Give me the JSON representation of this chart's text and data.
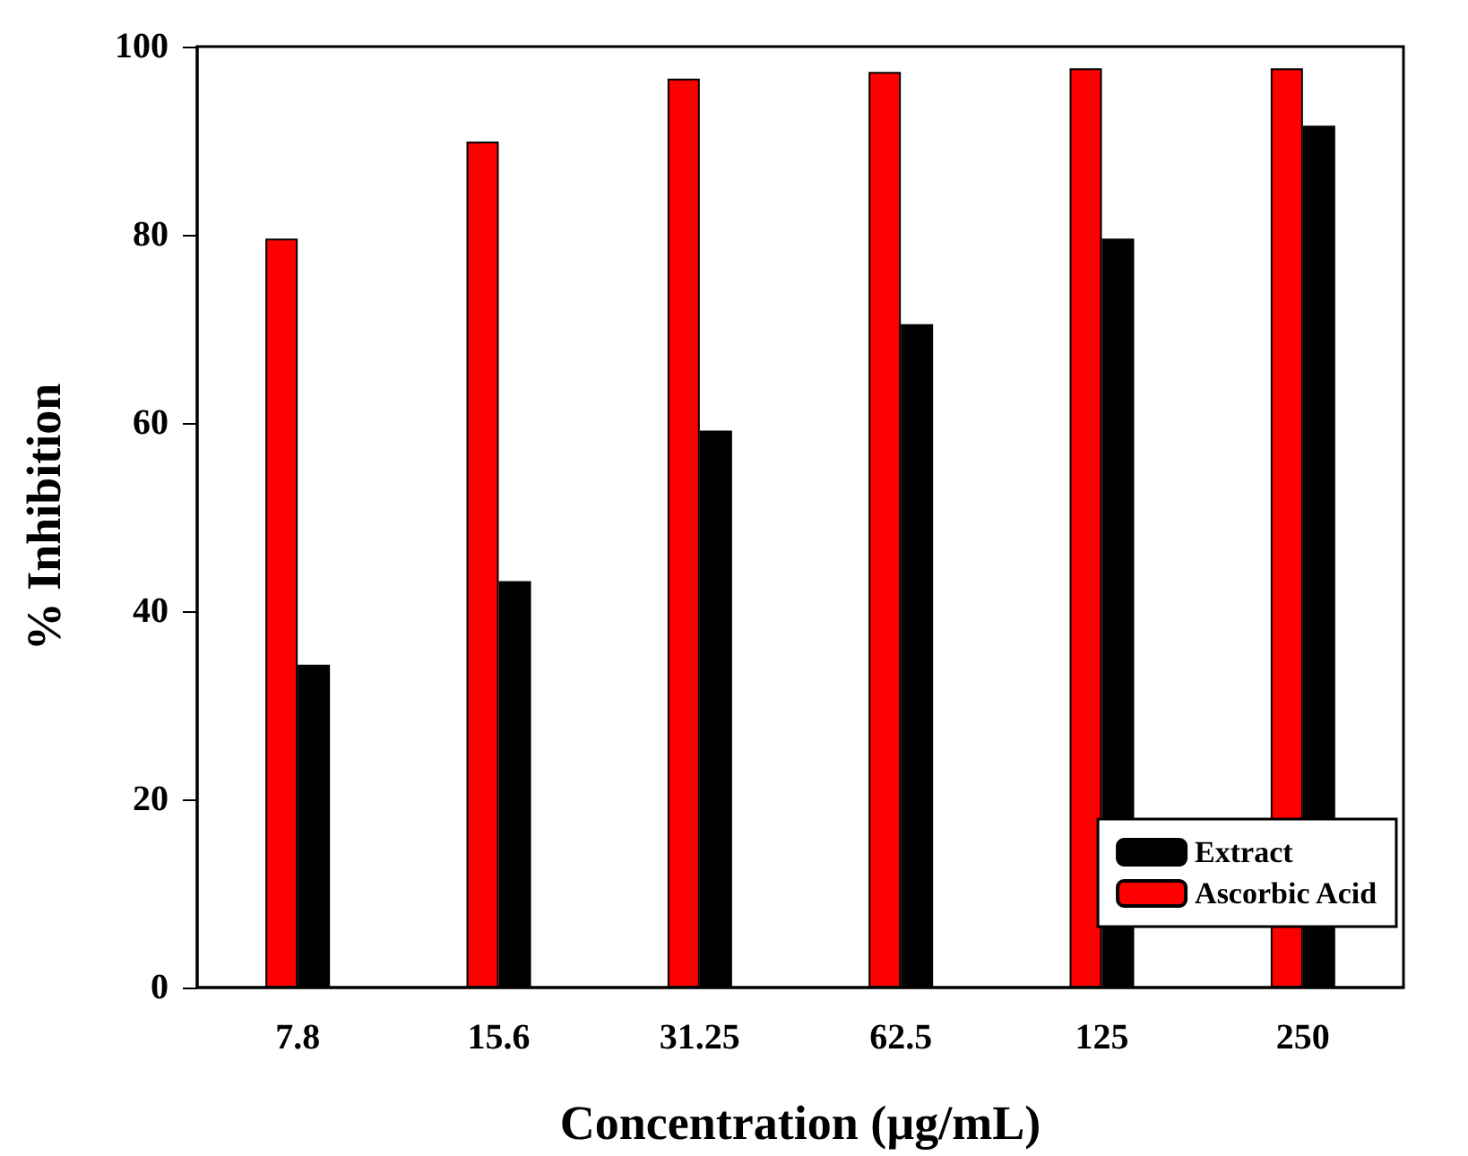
{
  "chart_data": {
    "type": "bar",
    "xlabel": "Concentration (µg/mL)",
    "ylabel": "% Inhibition",
    "categories": [
      "7.8",
      "15.6",
      "31.25",
      "62.5",
      "125",
      "250"
    ],
    "series": [
      {
        "name": "Ascorbic Acid",
        "color": "#ff0000",
        "values": [
          79.6,
          89.9,
          96.6,
          97.3,
          97.7,
          97.7
        ]
      },
      {
        "name": "Extract",
        "color": "#000000",
        "values": [
          34.3,
          43.2,
          59.2,
          70.5,
          79.6,
          91.6
        ]
      }
    ],
    "ylim": [
      0,
      100
    ],
    "yticks": [
      0,
      20,
      40,
      60,
      80,
      100
    ],
    "grid": false,
    "legend": "bottom right"
  }
}
